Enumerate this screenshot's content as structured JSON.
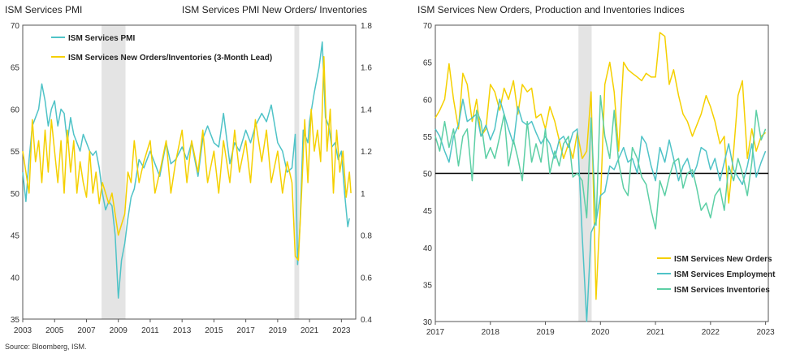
{
  "source": "Source: Bloomberg, ISM.",
  "chart_data": [
    {
      "type": "line",
      "title": "ISM Services PMI",
      "title_right": "ISM Services PMI New Orders/ Inventories",
      "xlim": [
        2003,
        2023.9
      ],
      "ylim_left": [
        35,
        70
      ],
      "ylim_right": [
        0.4,
        1.8
      ],
      "x_ticks": [
        "2003",
        "2005",
        "2007",
        "2009",
        "2011",
        "2013",
        "2015",
        "2017",
        "2019",
        "2021",
        "2023"
      ],
      "x_tick_values": [
        2003,
        2005,
        2007,
        2009,
        2011,
        2013,
        2015,
        2017,
        2019,
        2021,
        2023
      ],
      "y_ticks_left": [
        "35",
        "40",
        "45",
        "50",
        "55",
        "60",
        "65",
        "70"
      ],
      "y_tick_values_left": [
        35,
        40,
        45,
        50,
        55,
        60,
        65,
        70
      ],
      "y_ticks_right": [
        "0.4",
        "0.6",
        "0.8",
        "1",
        "1.2",
        "1.4",
        "1.6",
        "1.8"
      ],
      "y_tick_values_right": [
        0.4,
        0.6,
        0.8,
        1.0,
        1.2,
        1.4,
        1.6,
        1.8
      ],
      "recessions": [
        [
          2007.95,
          2009.45
        ],
        [
          2020.05,
          2020.35
        ]
      ],
      "grid": false,
      "legend_position": "top-left",
      "series": [
        {
          "name": "ISM Services PMI",
          "axis": "left",
          "color": "#4fc3c7",
          "x": [
            2003.0,
            2003.2,
            2003.4,
            2003.6,
            2003.8,
            2004.0,
            2004.2,
            2004.4,
            2004.6,
            2004.8,
            2005.0,
            2005.2,
            2005.4,
            2005.6,
            2005.8,
            2006.0,
            2006.2,
            2006.4,
            2006.6,
            2006.8,
            2007.0,
            2007.2,
            2007.4,
            2007.6,
            2007.8,
            2008.0,
            2008.2,
            2008.4,
            2008.6,
            2008.8,
            2009.0,
            2009.2,
            2009.4,
            2009.6,
            2009.8,
            2010.0,
            2010.3,
            2010.6,
            2011.0,
            2011.3,
            2011.6,
            2012.0,
            2012.3,
            2012.6,
            2013.0,
            2013.3,
            2013.6,
            2014.0,
            2014.3,
            2014.6,
            2015.0,
            2015.3,
            2015.6,
            2016.0,
            2016.3,
            2016.6,
            2017.0,
            2017.3,
            2017.6,
            2018.0,
            2018.3,
            2018.6,
            2019.0,
            2019.3,
            2019.6,
            2019.9,
            2020.1,
            2020.25,
            2020.4,
            2020.6,
            2020.9,
            2021.0,
            2021.3,
            2021.6,
            2021.8,
            2022.0,
            2022.2,
            2022.4,
            2022.6,
            2022.8,
            2023.0,
            2023.2,
            2023.4,
            2023.5
          ],
          "values": [
            52.5,
            49.0,
            54.0,
            58.0,
            59.0,
            60.0,
            63.0,
            61.0,
            58.0,
            60.0,
            61.0,
            58.0,
            60.0,
            59.5,
            56.0,
            59.0,
            57.0,
            56.0,
            55.0,
            57.0,
            56.0,
            55.0,
            54.5,
            55.0,
            53.0,
            50.0,
            48.0,
            49.0,
            48.5,
            45.0,
            37.5,
            42.0,
            44.0,
            47.0,
            49.5,
            50.5,
            54.0,
            53.0,
            55.0,
            53.5,
            52.0,
            56.0,
            53.5,
            54.0,
            55.5,
            54.0,
            56.0,
            52.0,
            56.5,
            58.0,
            56.0,
            55.5,
            59.5,
            53.5,
            56.0,
            55.0,
            57.5,
            56.0,
            58.0,
            59.5,
            58.5,
            60.5,
            56.0,
            55.0,
            52.5,
            53.0,
            57.0,
            41.5,
            46.0,
            57.5,
            56.0,
            58.5,
            62.0,
            65.0,
            68.0,
            59.0,
            58.0,
            55.5,
            56.0,
            54.0,
            55.0,
            50.0,
            46.0,
            47.0
          ]
        },
        {
          "name": "ISM Services New Orders/Inventories (3-Month Lead)",
          "axis": "right",
          "color": "#f5d000",
          "x": [
            2003.0,
            2003.2,
            2003.4,
            2003.6,
            2003.8,
            2004.0,
            2004.2,
            2004.4,
            2004.6,
            2004.8,
            2005.0,
            2005.2,
            2005.4,
            2005.6,
            2005.8,
            2006.0,
            2006.2,
            2006.4,
            2006.6,
            2006.8,
            2007.0,
            2007.2,
            2007.4,
            2007.6,
            2007.8,
            2008.0,
            2008.2,
            2008.4,
            2008.6,
            2008.8,
            2009.0,
            2009.2,
            2009.4,
            2009.6,
            2009.8,
            2010.0,
            2010.3,
            2010.6,
            2011.0,
            2011.3,
            2011.6,
            2012.0,
            2012.3,
            2012.6,
            2013.0,
            2013.3,
            2013.6,
            2014.0,
            2014.3,
            2014.6,
            2015.0,
            2015.3,
            2015.6,
            2016.0,
            2016.3,
            2016.6,
            2017.0,
            2017.3,
            2017.6,
            2018.0,
            2018.3,
            2018.6,
            2019.0,
            2019.3,
            2019.6,
            2019.9,
            2020.1,
            2020.3,
            2020.5,
            2020.7,
            2020.9,
            2021.1,
            2021.3,
            2021.5,
            2021.7,
            2021.9,
            2022.1,
            2022.3,
            2022.5,
            2022.7,
            2022.9,
            2023.1,
            2023.3,
            2023.5,
            2023.6
          ],
          "values": [
            1.2,
            1.1,
            1.0,
            1.35,
            1.15,
            1.25,
            1.05,
            1.3,
            1.1,
            1.35,
            1.2,
            1.05,
            1.25,
            1.0,
            1.3,
            1.1,
            1.25,
            1.0,
            1.15,
            1.05,
            0.98,
            1.2,
            1.0,
            1.1,
            0.95,
            1.05,
            1.0,
            0.95,
            1.0,
            0.9,
            0.8,
            0.85,
            0.9,
            1.1,
            1.05,
            1.25,
            1.05,
            1.15,
            1.25,
            1.0,
            1.1,
            1.25,
            1.0,
            1.15,
            1.3,
            1.05,
            1.25,
            1.1,
            1.3,
            1.05,
            1.2,
            1.0,
            1.25,
            1.05,
            1.3,
            1.1,
            1.25,
            1.05,
            1.35,
            1.15,
            1.3,
            1.05,
            1.2,
            1.0,
            1.15,
            1.05,
            0.7,
            0.68,
            1.0,
            1.35,
            1.05,
            1.4,
            1.2,
            1.3,
            1.15,
            1.65,
            1.2,
            1.4,
            1.0,
            1.3,
            1.1,
            1.2,
            0.98,
            1.1,
            1.0
          ]
        }
      ]
    },
    {
      "type": "line",
      "title": "ISM Services New Orders, Production and Inventories Indices",
      "xlim": [
        2017,
        2023.05
      ],
      "ylim": [
        30,
        70
      ],
      "x_ticks": [
        "2017",
        "2018",
        "2019",
        "2020",
        "2021",
        "2022",
        "2023"
      ],
      "x_tick_values": [
        2017,
        2018,
        2019,
        2020,
        2021,
        2022,
        2023
      ],
      "y_ticks": [
        "30",
        "35",
        "40",
        "45",
        "50",
        "55",
        "60",
        "65",
        "70"
      ],
      "y_tick_values": [
        30,
        35,
        40,
        45,
        50,
        55,
        60,
        65,
        70
      ],
      "reference_line": 50,
      "recessions": [
        [
          2019.6,
          2019.84
        ]
      ],
      "grid": false,
      "legend_position": "bottom-right",
      "series": [
        {
          "name": "ISM Services New Orders",
          "color": "#f5d000",
          "x": [
            2017.0,
            2017.08,
            2017.17,
            2017.25,
            2017.33,
            2017.42,
            2017.5,
            2017.58,
            2017.67,
            2017.75,
            2017.83,
            2017.92,
            2018.0,
            2018.08,
            2018.17,
            2018.25,
            2018.33,
            2018.42,
            2018.5,
            2018.58,
            2018.67,
            2018.75,
            2018.83,
            2018.92,
            2019.0,
            2019.08,
            2019.17,
            2019.25,
            2019.33,
            2019.42,
            2019.5,
            2019.58,
            2019.67,
            2019.75,
            2019.83,
            2019.92,
            2020.0,
            2020.08,
            2020.17,
            2020.25,
            2020.33,
            2020.42,
            2020.5,
            2020.58,
            2020.67,
            2020.75,
            2020.83,
            2020.92,
            2021.0,
            2021.08,
            2021.17,
            2021.25,
            2021.33,
            2021.42,
            2021.5,
            2021.58,
            2021.67,
            2021.75,
            2021.83,
            2021.92,
            2022.0,
            2022.08,
            2022.17,
            2022.25,
            2022.33,
            2022.42,
            2022.5,
            2022.58,
            2022.67,
            2022.75,
            2022.83,
            2022.92,
            2023.0
          ],
          "values": [
            57.5,
            58.5,
            60.0,
            64.8,
            60.0,
            56.0,
            63.5,
            62.0,
            57.0,
            60.0,
            55.0,
            56.0,
            62.0,
            61.0,
            58.5,
            61.5,
            60.0,
            62.5,
            58.0,
            62.0,
            61.0,
            61.5,
            57.5,
            58.0,
            56.0,
            59.0,
            57.0,
            54.5,
            52.0,
            54.0,
            52.0,
            55.5,
            52.0,
            53.0,
            61.0,
            33.0,
            46.0,
            62.0,
            65.0,
            61.0,
            53.0,
            65.0,
            64.0,
            63.5,
            63.0,
            62.5,
            63.5,
            63.0,
            63.0,
            69.0,
            68.5,
            62.0,
            64.0,
            60.5,
            58.0,
            57.0,
            55.0,
            56.5,
            58.0,
            60.5,
            59.0,
            57.0,
            54.0,
            55.0,
            46.0,
            53.0,
            60.5,
            62.5,
            52.0,
            56.0,
            53.0,
            55.0,
            55.5
          ]
        },
        {
          "name": "ISM Services Employment",
          "color": "#4fc3c7",
          "x": [
            2017.0,
            2017.08,
            2017.17,
            2017.25,
            2017.33,
            2017.42,
            2017.5,
            2017.58,
            2017.67,
            2017.75,
            2017.83,
            2017.92,
            2018.0,
            2018.08,
            2018.17,
            2018.25,
            2018.33,
            2018.42,
            2018.5,
            2018.58,
            2018.67,
            2018.75,
            2018.83,
            2018.92,
            2019.0,
            2019.08,
            2019.17,
            2019.25,
            2019.33,
            2019.42,
            2019.5,
            2019.58,
            2019.67,
            2019.75,
            2019.83,
            2019.92,
            2020.0,
            2020.08,
            2020.17,
            2020.25,
            2020.33,
            2020.42,
            2020.5,
            2020.58,
            2020.67,
            2020.75,
            2020.83,
            2020.92,
            2021.0,
            2021.08,
            2021.17,
            2021.25,
            2021.33,
            2021.42,
            2021.5,
            2021.58,
            2021.67,
            2021.75,
            2021.83,
            2021.92,
            2022.0,
            2022.08,
            2022.17,
            2022.25,
            2022.33,
            2022.42,
            2022.5,
            2022.58,
            2022.67,
            2022.75,
            2022.83,
            2022.92,
            2023.0
          ],
          "values": [
            56.0,
            55.0,
            53.0,
            51.5,
            55.0,
            56.5,
            60.0,
            57.0,
            57.5,
            58.0,
            55.0,
            56.5,
            54.5,
            56.0,
            60.0,
            58.0,
            56.0,
            54.0,
            59.0,
            57.0,
            56.5,
            57.0,
            55.5,
            54.0,
            55.0,
            54.0,
            52.0,
            54.5,
            55.0,
            53.5,
            55.5,
            56.0,
            41.5,
            30.0,
            42.0,
            43.5,
            47.0,
            47.5,
            51.0,
            50.5,
            52.0,
            53.5,
            51.5,
            52.0,
            50.0,
            55.0,
            54.0,
            51.0,
            49.0,
            53.5,
            51.5,
            54.5,
            52.0,
            49.0,
            51.0,
            52.0,
            49.5,
            51.0,
            53.5,
            53.0,
            50.5,
            52.0,
            49.0,
            51.5,
            54.0,
            50.5,
            49.5,
            48.5,
            51.0,
            54.0,
            49.5,
            51.5,
            53.0
          ]
        },
        {
          "name": "ISM Services Inventories",
          "color": "#5ccfa5",
          "x": [
            2017.0,
            2017.08,
            2017.17,
            2017.25,
            2017.33,
            2017.42,
            2017.5,
            2017.58,
            2017.67,
            2017.75,
            2017.83,
            2017.92,
            2018.0,
            2018.08,
            2018.17,
            2018.25,
            2018.33,
            2018.42,
            2018.5,
            2018.58,
            2018.67,
            2018.75,
            2018.83,
            2018.92,
            2019.0,
            2019.08,
            2019.17,
            2019.25,
            2019.33,
            2019.42,
            2019.5,
            2019.58,
            2019.67,
            2019.75,
            2019.83,
            2019.92,
            2020.0,
            2020.08,
            2020.17,
            2020.25,
            2020.33,
            2020.42,
            2020.5,
            2020.58,
            2020.67,
            2020.75,
            2020.83,
            2020.92,
            2021.0,
            2021.08,
            2021.17,
            2021.25,
            2021.33,
            2021.42,
            2021.5,
            2021.58,
            2021.67,
            2021.75,
            2021.83,
            2021.92,
            2022.0,
            2022.08,
            2022.17,
            2022.25,
            2022.33,
            2022.42,
            2022.5,
            2022.58,
            2022.67,
            2022.75,
            2022.83,
            2022.92,
            2023.0
          ],
          "values": [
            55.0,
            53.0,
            57.0,
            53.5,
            56.0,
            51.0,
            55.0,
            56.0,
            49.0,
            58.5,
            57.0,
            52.0,
            53.5,
            52.0,
            55.0,
            58.0,
            51.0,
            54.5,
            52.0,
            49.0,
            57.0,
            51.5,
            54.0,
            51.5,
            56.0,
            50.0,
            53.0,
            51.0,
            54.0,
            55.0,
            49.5,
            50.0,
            49.0,
            44.0,
            57.5,
            43.0,
            60.5,
            55.0,
            52.0,
            58.5,
            51.5,
            48.0,
            47.0,
            53.5,
            52.0,
            49.5,
            48.5,
            45.0,
            42.5,
            49.0,
            47.0,
            49.5,
            51.5,
            52.0,
            48.0,
            50.0,
            50.5,
            48.0,
            45.0,
            46.0,
            44.0,
            47.0,
            48.0,
            45.0,
            51.0,
            49.0,
            52.0,
            50.0,
            47.0,
            51.5,
            58.5,
            54.5,
            56.0
          ]
        }
      ]
    }
  ]
}
